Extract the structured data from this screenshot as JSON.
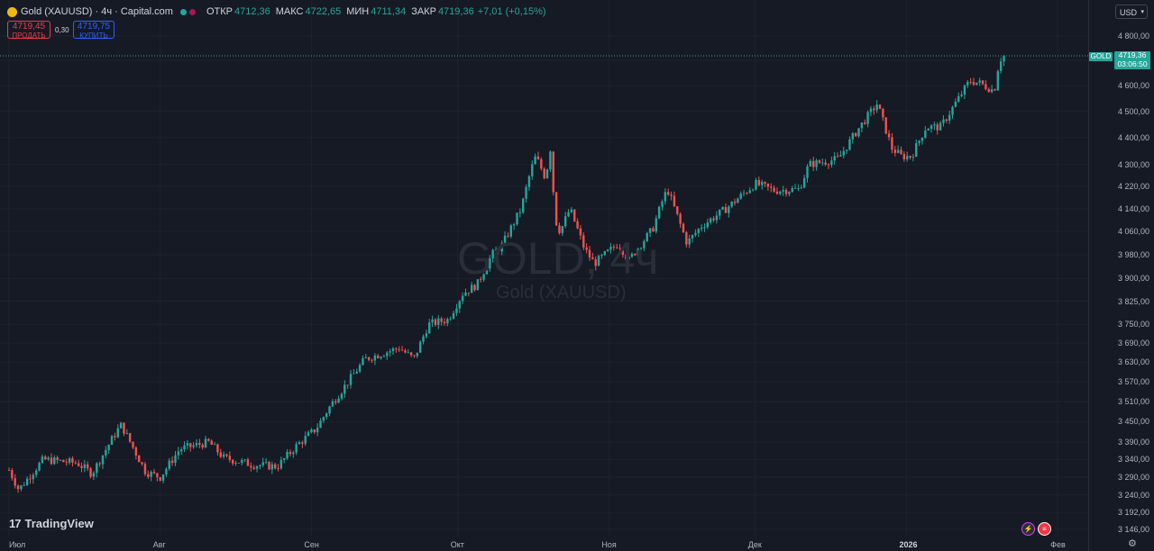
{
  "header": {
    "title": "Gold (XAUUSD) · 4ч · Capital.com",
    "open_label": "ОТКР",
    "open_value": "4712,36",
    "high_label": "МАКС",
    "high_value": "4722,65",
    "low_label": "МИН",
    "low_value": "4711,34",
    "close_label": "ЗАКР",
    "close_value": "4719,36",
    "change": "+7,01 (+0,15%)"
  },
  "trade": {
    "sell_price": "4719,45",
    "sell_label": "ПРОДАТЬ",
    "spread": "0,30",
    "buy_price": "4719,75",
    "buy_label": "КУПИТЬ"
  },
  "currency": "USD",
  "price_tag": {
    "symbol": "GOLD",
    "price": "4719,36",
    "countdown": "03:06:50"
  },
  "watermark": {
    "main": "GOLD, 4ч",
    "sub": "Gold (XAUUSD)"
  },
  "branding": "TradingView",
  "colors": {
    "up": "#26a69a",
    "down": "#ef5350",
    "background": "#161a25",
    "sell": "#f23645",
    "buy": "#2962ff"
  },
  "icons": {
    "currency_chevron": "chevron-down-icon",
    "settings": "gear-icon",
    "flash": "lightning-icon",
    "flag": "us-flag-icon"
  },
  "chart_data": {
    "type": "candlestick",
    "symbol": "XAUUSD",
    "timeframe": "4ч",
    "y_scale": "log",
    "y_ticks": [
      3146,
      3192,
      3240,
      3290,
      3340,
      3390,
      3450,
      3510,
      3570,
      3630,
      3690,
      3750,
      3825,
      3900,
      3980,
      4060,
      4140,
      4220,
      4300,
      4400,
      4500,
      4600,
      4700,
      4800
    ],
    "y_tick_labels": [
      "3 146,00",
      "3 192,00",
      "3 240,00",
      "3 290,00",
      "3 340,00",
      "3 390,00",
      "3 450,00",
      "3 510,00",
      "3 570,00",
      "3 630,00",
      "3 690,00",
      "3 750,00",
      "3 825,00",
      "3 900,00",
      "3 980,00",
      "4 060,00",
      "4 140,00",
      "4 220,00",
      "4 300,00",
      "4 400,00",
      "4 500,00",
      "4 600,00",
      "4 700,00",
      "4 800,00"
    ],
    "x_tick_labels": [
      "Июл",
      "Авг",
      "Сен",
      "Окт",
      "Ноя",
      "Дек",
      "2026",
      "Фев"
    ],
    "last_price": 4719.36,
    "trend_points": [
      {
        "date": "Jul 1",
        "price": 3310
      },
      {
        "date": "Jul 3",
        "price": 3255
      },
      {
        "date": "Jul 8",
        "price": 3340
      },
      {
        "date": "Jul 15",
        "price": 3330
      },
      {
        "date": "Jul 18",
        "price": 3300
      },
      {
        "date": "Jul 23",
        "price": 3420
      },
      {
        "date": "Jul 24",
        "price": 3440
      },
      {
        "date": "Jul 29",
        "price": 3305
      },
      {
        "date": "Aug 1",
        "price": 3290
      },
      {
        "date": "Aug 5",
        "price": 3370
      },
      {
        "date": "Aug 11",
        "price": 3390
      },
      {
        "date": "Aug 14",
        "price": 3345
      },
      {
        "date": "Aug 20",
        "price": 3325
      },
      {
        "date": "Aug 25",
        "price": 3320
      },
      {
        "date": "Aug 29",
        "price": 3380
      },
      {
        "date": "Sep 2",
        "price": 3430
      },
      {
        "date": "Sep 5",
        "price": 3500
      },
      {
        "date": "Sep 9",
        "price": 3580
      },
      {
        "date": "Sep 12",
        "price": 3640
      },
      {
        "date": "Sep 16",
        "price": 3660
      },
      {
        "date": "Sep 19",
        "price": 3675
      },
      {
        "date": "Sep 22",
        "price": 3640
      },
      {
        "date": "Sep 25",
        "price": 3750
      },
      {
        "date": "Sep 29",
        "price": 3765
      },
      {
        "date": "Oct 2",
        "price": 3850
      },
      {
        "date": "Oct 5",
        "price": 3880
      },
      {
        "date": "Oct 8",
        "price": 3980
      },
      {
        "date": "Oct 10",
        "price": 4010
      },
      {
        "date": "Oct 14",
        "price": 4140
      },
      {
        "date": "Oct 16",
        "price": 4280
      },
      {
        "date": "Oct 17",
        "price": 4330
      },
      {
        "date": "Oct 19",
        "price": 4250
      },
      {
        "date": "Oct 20",
        "price": 4360
      },
      {
        "date": "Oct 21",
        "price": 4100
      },
      {
        "date": "Oct 22",
        "price": 4060
      },
      {
        "date": "Oct 24",
        "price": 4140
      },
      {
        "date": "Oct 27",
        "price": 4000
      },
      {
        "date": "Oct 29",
        "price": 3950
      },
      {
        "date": "Nov 3",
        "price": 4020
      },
      {
        "date": "Nov 5",
        "price": 3960
      },
      {
        "date": "Nov 10",
        "price": 4070
      },
      {
        "date": "Nov 12",
        "price": 4170
      },
      {
        "date": "Nov 13",
        "price": 4210
      },
      {
        "date": "Nov 17",
        "price": 4020
      },
      {
        "date": "Nov 20",
        "price": 4080
      },
      {
        "date": "Nov 25",
        "price": 4140
      },
      {
        "date": "Dec 1",
        "price": 4230
      },
      {
        "date": "Dec 5",
        "price": 4205
      },
      {
        "date": "Dec 10",
        "price": 4210
      },
      {
        "date": "Dec 12",
        "price": 4300
      },
      {
        "date": "Dec 15",
        "price": 4310
      },
      {
        "date": "Dec 18",
        "price": 4320
      },
      {
        "date": "Dec 22",
        "price": 4430
      },
      {
        "date": "Dec 24",
        "price": 4480
      },
      {
        "date": "Dec 26",
        "price": 4530
      },
      {
        "date": "Dec 29",
        "price": 4360
      },
      {
        "date": "Dec 31",
        "price": 4330
      },
      {
        "date": "Jan 2",
        "price": 4330
      },
      {
        "date": "Jan 5",
        "price": 4440
      },
      {
        "date": "Jan 8",
        "price": 4440
      },
      {
        "date": "Jan 12",
        "price": 4560
      },
      {
        "date": "Jan 14",
        "price": 4620
      },
      {
        "date": "Jan 16",
        "price": 4610
      },
      {
        "date": "Jan 19",
        "price": 4580
      },
      {
        "date": "Jan 20",
        "price": 4700
      },
      {
        "date": "Jan 21",
        "price": 4719
      }
    ]
  }
}
